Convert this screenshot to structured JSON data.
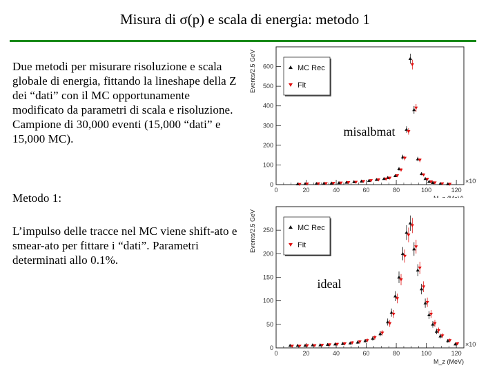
{
  "slide": {
    "title": "Misura di σ(p) e scala di energia: metodo 1",
    "paragraph_1": "Due metodi per misurare risoluzione e scala globale di energia, fittando la lineshape della Z dei “dati” con il MC opportunamente modificato da parametri di scala e risoluzione. Campione di 30,000 eventi (15,000 “dati” e 15,000 MC).",
    "paragraph_2": "Metodo 1:",
    "paragraph_3": "L’impulso delle tracce nel MC viene shift-ato e smear-ato per fittare i “dati”. Parametri determinati allo 0.1%.",
    "colors": {
      "rule": "#1a8a1a",
      "mc_marker": "#111111",
      "fit_marker": "#e01010"
    }
  },
  "chart_data": [
    {
      "type": "scatter",
      "overlay_label": "misalbmat",
      "ylabel": "Events/2.5 GeV",
      "xlabel": "M_z (MeV)",
      "x_multiplier": "×10³",
      "xlim": [
        0,
        125
      ],
      "ylim": [
        0,
        700
      ],
      "xticks": [
        0,
        20,
        40,
        60,
        80,
        100,
        120
      ],
      "yticks": [
        0,
        100,
        200,
        300,
        400,
        500,
        600
      ],
      "legend": {
        "position": "top-left",
        "entries": [
          "MC Rec",
          "Fit"
        ]
      },
      "series": [
        {
          "name": "MC Rec",
          "marker": "triangle",
          "color": "#111111",
          "x": [
            15,
            20,
            27.5,
            32.5,
            37.5,
            42.5,
            47.5,
            52.5,
            57.5,
            62.5,
            67.5,
            72.5,
            75,
            80,
            82.5,
            85,
            87.5,
            90,
            92.5,
            95,
            97.5,
            100,
            102.5,
            105,
            110,
            115
          ],
          "y": [
            3,
            4,
            5,
            6,
            7,
            9,
            11,
            14,
            17,
            20,
            25,
            30,
            35,
            45,
            80,
            140,
            280,
            640,
            380,
            130,
            55,
            30,
            15,
            10,
            5,
            3
          ]
        },
        {
          "name": "Fit",
          "marker": "triangle-down",
          "color": "#e01010",
          "x": [
            15,
            20,
            27.5,
            32.5,
            37.5,
            42.5,
            47.5,
            52.5,
            57.5,
            62.5,
            67.5,
            72.5,
            75,
            80,
            82.5,
            85,
            87.5,
            90,
            92.5,
            95,
            97.5,
            100,
            102.5,
            105,
            110,
            115
          ],
          "y": [
            2,
            4,
            5,
            6,
            7,
            9,
            11,
            13,
            17,
            21,
            25,
            29,
            34,
            46,
            75,
            135,
            270,
            610,
            390,
            125,
            50,
            28,
            15,
            10,
            5,
            3
          ]
        }
      ]
    },
    {
      "type": "scatter",
      "overlay_label": "ideal",
      "ylabel": "Events/2.5 GeV",
      "xlabel": "M_z (MeV)",
      "x_multiplier": "×10³",
      "xlim": [
        0,
        125
      ],
      "ylim": [
        0,
        300
      ],
      "xticks": [
        0,
        20,
        40,
        60,
        80,
        100,
        120
      ],
      "yticks": [
        0,
        50,
        100,
        150,
        200,
        250
      ],
      "legend": {
        "position": "top-left",
        "entries": [
          "MC Rec",
          "Fit"
        ]
      },
      "series": [
        {
          "name": "MC Rec",
          "marker": "triangle",
          "color": "#111111",
          "x": [
            10,
            15,
            20,
            25,
            30,
            35,
            40,
            45,
            50,
            55,
            60,
            65,
            70,
            75,
            77.5,
            80,
            82.5,
            85,
            87.5,
            90,
            92.5,
            95,
            97.5,
            100,
            102.5,
            105,
            107.5,
            110,
            115,
            120
          ],
          "y": [
            5,
            5,
            5,
            6,
            6,
            7,
            8,
            9,
            10,
            12,
            15,
            20,
            30,
            55,
            75,
            110,
            150,
            200,
            245,
            265,
            210,
            165,
            125,
            95,
            70,
            50,
            35,
            25,
            15,
            8
          ]
        },
        {
          "name": "Fit",
          "marker": "triangle-down",
          "color": "#e01010",
          "x": [
            10,
            15,
            20,
            25,
            30,
            35,
            40,
            45,
            50,
            55,
            60,
            65,
            70,
            75,
            77.5,
            80,
            82.5,
            85,
            87.5,
            90,
            92.5,
            95,
            97.5,
            100,
            102.5,
            105,
            107.5,
            110,
            115,
            120
          ],
          "y": [
            4,
            4,
            5,
            5,
            6,
            7,
            8,
            9,
            11,
            13,
            16,
            22,
            32,
            52,
            72,
            105,
            145,
            195,
            240,
            260,
            215,
            170,
            130,
            97,
            72,
            52,
            37,
            26,
            16,
            9
          ]
        }
      ]
    }
  ]
}
